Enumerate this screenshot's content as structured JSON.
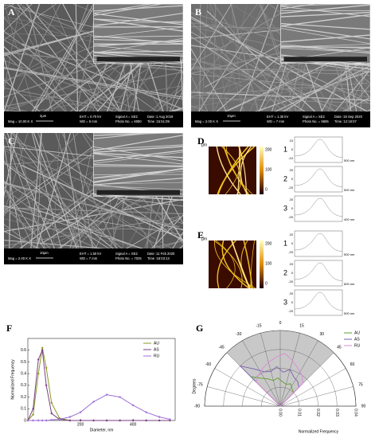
{
  "panels": [
    {
      "label": "A",
      "info": [
        "Mag = 10.00 K X",
        "2µm",
        "EHT = 0.70 kV",
        "WD = 6 mm",
        "Signal A = SE2",
        "Photo No. = 6080",
        "Date :1 Aug 2019",
        "Time :15:51:09"
      ]
    },
    {
      "label": "B",
      "info": [
        "Mag = 2.00 K X",
        "10µm",
        "EHT = 1.30 kV",
        "WD = 7 mm",
        "Signal A = SE2",
        "Photo No. = 9605",
        "Date :18 Sep 2020",
        "Time :12:18:07"
      ]
    },
    {
      "label": "C",
      "info": [
        "Mag = 2.00 K X",
        "10µm",
        "EHT = 1.50 kV",
        "WD = 7 mm",
        "Signal A = SE2",
        "Photo No. = 7025",
        "Date :11 Feb 2020",
        "Time :18:03:13"
      ]
    }
  ],
  "afm": [
    {
      "label": "D",
      "unit": "µm",
      "colorbar": [
        "200",
        "100",
        "0"
      ],
      "profiles": [
        {
          "number": "1",
          "yticks": [
            "10",
            "0",
            "-10"
          ],
          "length": "500 nm"
        },
        {
          "number": "2",
          "yticks": [
            "20",
            "0",
            "-20"
          ],
          "length": "500 nm"
        },
        {
          "number": "3",
          "yticks": [
            "20",
            "0",
            "-20"
          ],
          "length": "400 nm"
        }
      ]
    },
    {
      "label": "E",
      "unit": "µm",
      "colorbar": [
        "200",
        "100",
        "0"
      ],
      "profiles": [
        {
          "number": "1",
          "yticks": [
            "20",
            "0",
            "-20"
          ],
          "length": "500 nm"
        },
        {
          "number": "2",
          "yticks": [
            "20",
            "0",
            "-20"
          ],
          "length": "600 nm"
        },
        {
          "number": "3",
          "yticks": [
            "20",
            "0",
            "-20"
          ],
          "length": "500 nm"
        }
      ]
    }
  ],
  "chart_data": [
    {
      "type": "line",
      "label": "F",
      "xlabel": "Diameter, nm",
      "ylabel": "Normalized Frequency",
      "x": [
        0,
        20,
        40,
        55,
        70,
        90,
        120,
        160,
        200,
        250,
        300,
        350,
        400,
        450,
        500,
        540
      ],
      "series": [
        {
          "name": "AU",
          "color": "#8a9a24",
          "values": [
            0,
            0.05,
            0.4,
            0.62,
            0.45,
            0.15,
            0.02,
            0,
            0,
            0,
            0,
            0,
            0,
            0,
            0,
            0
          ]
        },
        {
          "name": "AS",
          "color": "#7a3f86",
          "values": [
            0,
            0.1,
            0.52,
            0.6,
            0.3,
            0.06,
            0.01,
            0,
            0,
            0,
            0,
            0,
            0,
            0,
            0,
            0
          ]
        },
        {
          "name": "RU",
          "color": "#9d6fd8",
          "values": [
            0,
            0,
            0,
            0,
            0,
            0.005,
            0.01,
            0.03,
            0.07,
            0.16,
            0.22,
            0.2,
            0.13,
            0.07,
            0.03,
            0.01
          ]
        }
      ],
      "xlim": [
        0,
        560
      ],
      "xticks": [
        200,
        400
      ],
      "ylim": [
        0,
        0.7
      ],
      "yticks": [
        0,
        0.1,
        0.2,
        0.3,
        0.4,
        0.5,
        0.6
      ],
      "legend": "upper right"
    },
    {
      "type": "polar",
      "label": "G",
      "xlabel": "Normalized Frequency",
      "ylabel": "Degrees",
      "theta": [
        -45,
        -35,
        -25,
        -15,
        -5,
        5,
        15,
        25,
        35,
        45
      ],
      "series": [
        {
          "name": "AU",
          "color": "#5aa02c",
          "values": [
            0.022,
            0.018,
            0.016,
            0.014,
            0.015,
            0.013,
            0.012,
            0.013,
            0.011,
            0.01
          ]
        },
        {
          "name": "AS",
          "color": "#7a5fb0",
          "values": [
            0.03,
            0.024,
            0.02,
            0.019,
            0.021,
            0.018,
            0.02,
            0.017,
            0.016,
            0.014
          ]
        },
        {
          "name": "RU",
          "color": "#e08ad8",
          "values": [
            0.018,
            0.02,
            0.022,
            0.024,
            0.026,
            0.028,
            0.025,
            0.022,
            0.02,
            0.017
          ]
        }
      ],
      "sector": [
        -45,
        45
      ],
      "thetaticks": [
        -90,
        -75,
        -60,
        -45,
        -30,
        -15,
        0,
        15,
        30,
        45,
        60,
        75,
        90
      ],
      "rlim": [
        0,
        0.04
      ],
      "rticks": [
        {
          "value": 0,
          "label": "0.00"
        },
        {
          "value": 0.01,
          "label": "0.01"
        },
        {
          "value": 0.02,
          "label": "0.02"
        },
        {
          "value": 0.03,
          "label": "0.03"
        },
        {
          "value": 0.04,
          "label": "0.04"
        }
      ],
      "legend": "upper right"
    }
  ]
}
